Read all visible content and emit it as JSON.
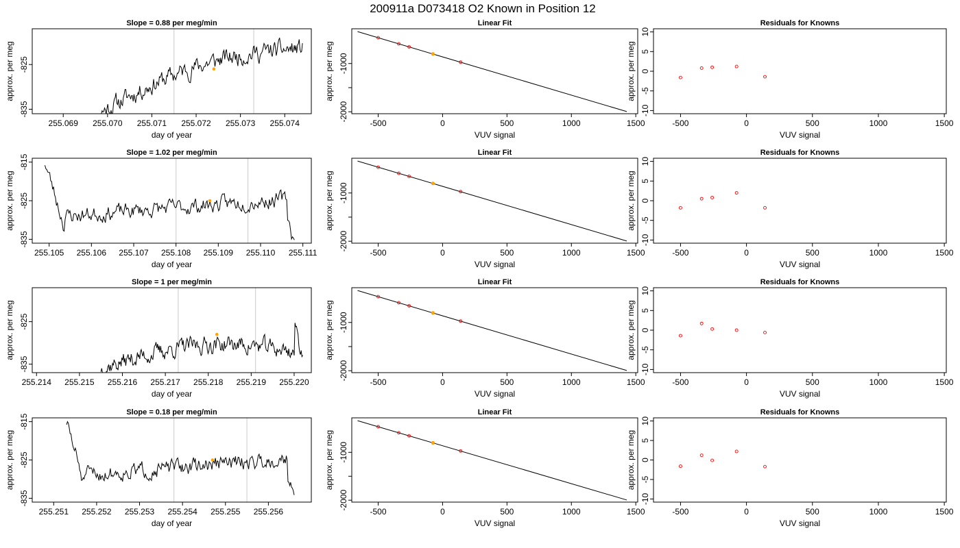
{
  "figure": {
    "title": "200911a     D073418   O2 Known in Position  12"
  },
  "colors": {
    "trace": "#000000",
    "marker": "#ffa500",
    "residual": "#ff0000",
    "vline": "#d3d3d3",
    "fit_line": "#000000"
  },
  "chart_data": [
    {
      "type": "line",
      "title": "Slope =  0.88  per meg/min",
      "xlabel": "day of year",
      "ylabel": "approx. per meg",
      "xlim": [
        255.0683,
        255.0746
      ],
      "ylim": [
        -836,
        -817
      ],
      "xticks": [
        255.069,
        255.07,
        255.071,
        255.072,
        255.073,
        255.074
      ],
      "xtick_labels": [
        "255.069",
        "255.070",
        "255.071",
        "255.072",
        "255.073",
        "255.074"
      ],
      "yticks": [
        -835,
        -825
      ],
      "ytick_labels": [
        "-835",
        "-825"
      ],
      "vlines": [
        255.0715,
        255.0733
      ],
      "trace": {
        "start": 255.0696,
        "end": 255.0744,
        "y_start": -837,
        "y_end": -822,
        "seed": 11,
        "start_drop": 6
      },
      "marker": {
        "x": 255.0724,
        "y": -826.0
      }
    },
    {
      "type": "line",
      "title": "Slope =  1.02  per meg/min",
      "xlabel": "day of year",
      "ylabel": "approx. per meg",
      "xlim": [
        255.1046,
        255.1112
      ],
      "ylim": [
        -836,
        -814
      ],
      "xticks": [
        255.105,
        255.106,
        255.107,
        255.108,
        255.109,
        255.11,
        255.111
      ],
      "xtick_labels": [
        "255.105",
        "255.106",
        "255.107",
        "255.108",
        "255.109",
        "255.110",
        "255.111"
      ],
      "yticks": [
        -835,
        -825,
        -815
      ],
      "ytick_labels": [
        "-835",
        "-825",
        "-815"
      ],
      "vlines": [
        255.108,
        255.1097
      ],
      "trace": {
        "start": 255.1049,
        "end": 255.1108,
        "y_start": -815,
        "y_end": -836,
        "seed": 23,
        "start_drop": 0
      },
      "marker": {
        "x": 255.1088,
        "y": -825.0
      }
    },
    {
      "type": "line",
      "title": "Slope =  1  per meg/min",
      "xlabel": "day of year",
      "ylabel": "approx. per meg",
      "xlim": [
        255.2139,
        255.2204
      ],
      "ylim": [
        -837,
        -817
      ],
      "xticks": [
        255.214,
        255.215,
        255.216,
        255.217,
        255.218,
        255.219,
        255.22
      ],
      "xtick_labels": [
        "255.214",
        "255.215",
        "255.216",
        "255.217",
        "255.218",
        "255.219",
        "255.220"
      ],
      "yticks": [
        -835,
        -825
      ],
      "ytick_labels": [
        "-835",
        "-825"
      ],
      "vlines": [
        255.2173,
        255.2191
      ],
      "trace": {
        "start": 255.2155,
        "end": 255.2202,
        "y_start": -836,
        "y_end": -833,
        "seed": 37,
        "start_drop": 0
      },
      "marker": {
        "x": 255.2182,
        "y": -828.0
      }
    },
    {
      "type": "line",
      "title": "Slope =  0.18  per meg/min",
      "xlabel": "day of year",
      "ylabel": "approx. per meg",
      "xlim": [
        255.2505,
        255.257
      ],
      "ylim": [
        -836,
        -814
      ],
      "xticks": [
        255.251,
        255.252,
        255.253,
        255.254,
        255.255,
        255.256
      ],
      "xtick_labels": [
        "255.251",
        "255.252",
        "255.253",
        "255.254",
        "255.255",
        "255.256"
      ],
      "yticks": [
        -835,
        -825,
        -815
      ],
      "ytick_labels": [
        "-835",
        "-825",
        "-815"
      ],
      "vlines": [
        255.2538,
        255.2555
      ],
      "trace": {
        "start": 255.2513,
        "end": 255.2566,
        "y_start": -815,
        "y_end": -836,
        "seed": 51,
        "start_drop": 0
      },
      "marker": {
        "x": 255.2547,
        "y": -825.0
      }
    },
    {
      "type": "scatter",
      "title": "Linear Fit",
      "xlabel": "VUV signal",
      "ylabel": "approx. per meg",
      "xlim": [
        -705,
        1515
      ],
      "ylim": [
        -2040,
        -280
      ],
      "xticks": [
        -500,
        0,
        500,
        1000,
        1500
      ],
      "xtick_labels": [
        "-500",
        "0",
        "500",
        "1000",
        "1500"
      ],
      "yticks": [
        -1000,
        -1500,
        -2000
      ],
      "ytick_labels": [
        "-1000",
        "",
        "-2000"
      ],
      "line": {
        "x": [
          -660,
          1430
        ],
        "y": [
          -339,
          -1996
        ]
      },
      "points": {
        "x": [
          -500,
          -340,
          -260,
          -75,
          140
        ],
        "y": [
          -466,
          -592,
          -655,
          -802,
          -972
        ]
      },
      "highlight": {
        "x": -75,
        "y": -802
      }
    },
    {
      "type": "scatter",
      "title": "Linear Fit",
      "xlabel": "VUV signal",
      "ylabel": "approx. per meg",
      "xlim": [
        -705,
        1515
      ],
      "ylim": [
        -2040,
        -280
      ],
      "xticks": [
        -500,
        0,
        500,
        1000,
        1500
      ],
      "xtick_labels": [
        "-500",
        "0",
        "500",
        "1000",
        "1500"
      ],
      "yticks": [
        -1000,
        -1500,
        -2000
      ],
      "ytick_labels": [
        "-1000",
        "",
        "-2000"
      ],
      "line": {
        "x": [
          -660,
          1430
        ],
        "y": [
          -339,
          -1996
        ]
      },
      "points": {
        "x": [
          -500,
          -340,
          -260,
          -75,
          140
        ],
        "y": [
          -466,
          -592,
          -655,
          -802,
          -972
        ]
      },
      "highlight": {
        "x": -75,
        "y": -802
      }
    },
    {
      "type": "scatter",
      "title": "Linear Fit",
      "xlabel": "VUV signal",
      "ylabel": "approx. per meg",
      "xlim": [
        -705,
        1515
      ],
      "ylim": [
        -2040,
        -280
      ],
      "xticks": [
        -500,
        0,
        500,
        1000,
        1500
      ],
      "xtick_labels": [
        "-500",
        "0",
        "500",
        "1000",
        "1500"
      ],
      "yticks": [
        -1000,
        -1500,
        -2000
      ],
      "ytick_labels": [
        "-1000",
        "",
        "-2000"
      ],
      "line": {
        "x": [
          -660,
          1430
        ],
        "y": [
          -339,
          -1996
        ]
      },
      "points": {
        "x": [
          -500,
          -340,
          -260,
          -75,
          140
        ],
        "y": [
          -466,
          -592,
          -655,
          -802,
          -972
        ]
      },
      "highlight": {
        "x": -75,
        "y": -802
      }
    },
    {
      "type": "scatter",
      "title": "Linear Fit",
      "xlabel": "VUV signal",
      "ylabel": "approx. per meg",
      "xlim": [
        -705,
        1515
      ],
      "ylim": [
        -2040,
        -280
      ],
      "xticks": [
        -500,
        0,
        500,
        1000,
        1500
      ],
      "xtick_labels": [
        "-500",
        "0",
        "500",
        "1000",
        "1500"
      ],
      "yticks": [
        -1000,
        -1500,
        -2000
      ],
      "ytick_labels": [
        "-1000",
        "",
        "-2000"
      ],
      "line": {
        "x": [
          -660,
          1430
        ],
        "y": [
          -339,
          -1996
        ]
      },
      "points": {
        "x": [
          -500,
          -340,
          -260,
          -75,
          140
        ],
        "y": [
          -466,
          -592,
          -655,
          -802,
          -972
        ]
      },
      "highlight": {
        "x": -75,
        "y": -802
      }
    },
    {
      "type": "scatter",
      "title": "Residuals for Knowns",
      "xlabel": "VUV signal",
      "ylabel": "approx. per meg",
      "xlim": [
        -705,
        1515
      ],
      "ylim": [
        -10.8,
        10.8
      ],
      "xticks": [
        -500,
        0,
        500,
        1000,
        1500
      ],
      "xtick_labels": [
        "-500",
        "0",
        "500",
        "1000",
        "1500"
      ],
      "yticks": [
        -10,
        -5,
        0,
        5,
        10
      ],
      "ytick_labels": [
        "-10",
        "-5",
        "0",
        "5",
        "10"
      ],
      "points": {
        "x": [
          -500,
          -340,
          -260,
          -75,
          140
        ],
        "y": [
          -1.6,
          0.8,
          1.0,
          1.2,
          -1.4
        ]
      }
    },
    {
      "type": "scatter",
      "title": "Residuals for Knowns",
      "xlabel": "VUV signal",
      "ylabel": "approx. per meg",
      "xlim": [
        -705,
        1515
      ],
      "ylim": [
        -10.8,
        10.8
      ],
      "xticks": [
        -500,
        0,
        500,
        1000,
        1500
      ],
      "xtick_labels": [
        "-500",
        "0",
        "500",
        "1000",
        "1500"
      ],
      "yticks": [
        -10,
        -5,
        0,
        5,
        10
      ],
      "ytick_labels": [
        "-10",
        "-5",
        "0",
        "5",
        "10"
      ],
      "points": {
        "x": [
          -500,
          -340,
          -260,
          -75,
          140
        ],
        "y": [
          -1.8,
          0.5,
          0.8,
          2.0,
          -1.8
        ]
      }
    },
    {
      "type": "scatter",
      "title": "Residuals for Knowns",
      "xlabel": "VUV signal",
      "ylabel": "approx. per meg",
      "xlim": [
        -705,
        1515
      ],
      "ylim": [
        -10.8,
        10.8
      ],
      "xticks": [
        -500,
        0,
        500,
        1000,
        1500
      ],
      "xtick_labels": [
        "-500",
        "0",
        "500",
        "1000",
        "1500"
      ],
      "yticks": [
        -10,
        -5,
        0,
        5,
        10
      ],
      "ytick_labels": [
        "-10",
        "-5",
        "0",
        "5",
        "10"
      ],
      "points": {
        "x": [
          -500,
          -340,
          -260,
          -75,
          140
        ],
        "y": [
          -1.4,
          1.7,
          0.3,
          0.0,
          -0.6
        ]
      }
    },
    {
      "type": "scatter",
      "title": "Residuals for Knowns",
      "xlabel": "VUV signal",
      "ylabel": "approx. per meg",
      "xlim": [
        -705,
        1515
      ],
      "ylim": [
        -10.8,
        10.8
      ],
      "xticks": [
        -500,
        0,
        500,
        1000,
        1500
      ],
      "xtick_labels": [
        "-500",
        "0",
        "500",
        "1000",
        "1500"
      ],
      "yticks": [
        -10,
        -5,
        0,
        5,
        10
      ],
      "ytick_labels": [
        "-10",
        "-5",
        "0",
        "5",
        "10"
      ],
      "points": {
        "x": [
          -500,
          -340,
          -260,
          -75,
          140
        ],
        "y": [
          -1.6,
          1.2,
          -0.1,
          2.2,
          -1.7
        ]
      }
    }
  ]
}
